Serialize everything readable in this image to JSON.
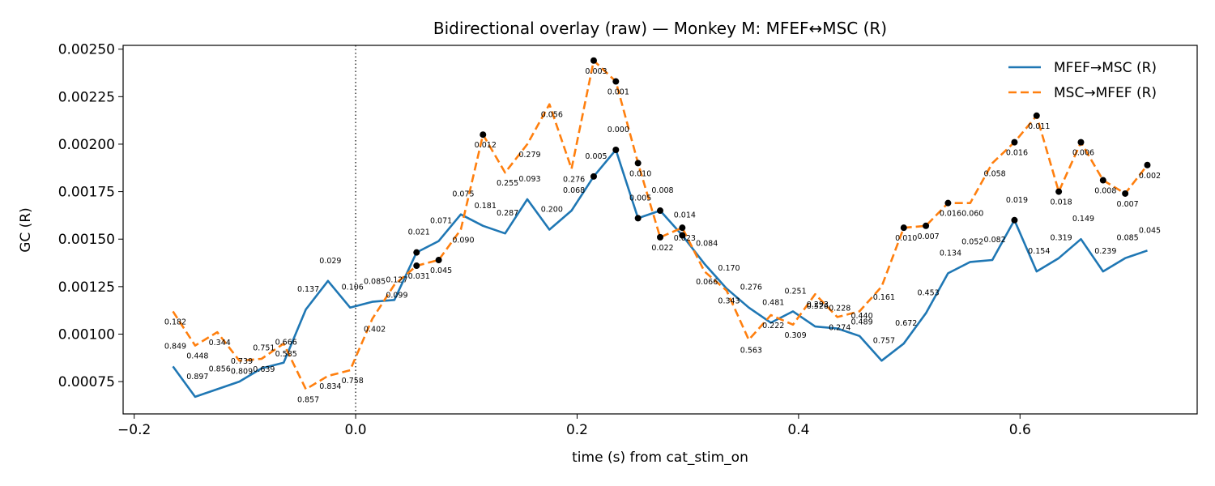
{
  "chart_data": {
    "type": "line",
    "title": "Bidirectional overlay (raw) — Monkey M: MFEF↔MSC (R)",
    "xlabel": "time (s) from cat_stim_on",
    "ylabel": "GC (R)",
    "xlim": [
      -0.21,
      0.76
    ],
    "ylim": [
      0.00058,
      0.00252
    ],
    "xticks": [
      -0.2,
      0.0,
      0.2,
      0.4,
      0.6
    ],
    "xtick_labels": [
      "−0.2",
      "0.0",
      "0.2",
      "0.4",
      "0.6"
    ],
    "yticks": [
      0.00075,
      0.001,
      0.00125,
      0.0015,
      0.00175,
      0.002,
      0.00225,
      0.0025
    ],
    "ytick_labels": [
      "0.00075",
      "0.00100",
      "0.00125",
      "0.00150",
      "0.00175",
      "0.00200",
      "0.00225",
      "0.00250"
    ],
    "vline_x": 0.0,
    "legend_position": "top-right",
    "x": [
      -0.165,
      -0.145,
      -0.125,
      -0.105,
      -0.085,
      -0.065,
      -0.045,
      -0.025,
      -0.005,
      0.015,
      0.035,
      0.055,
      0.075,
      0.095,
      0.115,
      0.135,
      0.155,
      0.175,
      0.195,
      0.215,
      0.235,
      0.255,
      0.275,
      0.295,
      0.315,
      0.335,
      0.355,
      0.375,
      0.395,
      0.415,
      0.435,
      0.455,
      0.475,
      0.495,
      0.515,
      0.535,
      0.555,
      0.575,
      0.595,
      0.615,
      0.635,
      0.655,
      0.675,
      0.695,
      0.715
    ],
    "series": [
      {
        "name": "MFEF→MSC (R)",
        "color": "#1f77b4",
        "dash": "solid",
        "values": [
          0.00083,
          0.00067,
          0.00071,
          0.00075,
          0.00082,
          0.00085,
          0.00113,
          0.00128,
          0.00114,
          0.00117,
          0.00118,
          0.00143,
          0.00149,
          0.00163,
          0.00157,
          0.00153,
          0.00171,
          0.00155,
          0.00165,
          0.00183,
          0.00197,
          0.00161,
          0.00165,
          0.00152,
          0.00137,
          0.00124,
          0.00114,
          0.00106,
          0.00112,
          0.00104,
          0.00103,
          0.00099,
          0.00086,
          0.00095,
          0.00111,
          0.00132,
          0.00138,
          0.00139,
          0.0016,
          0.00133,
          0.0014,
          0.0015,
          0.00133,
          0.0014,
          0.00144
        ],
        "p_values": [
          "0.849",
          "0.897",
          "0.856",
          "0.739",
          "0.751",
          "0.666",
          "0.137",
          "0.029",
          "0.106",
          "0.085",
          "0.127",
          "0.021",
          "0.071",
          "0.075",
          "0.181",
          "0.287",
          "0.093",
          "0.200",
          "0.068",
          "0.005",
          "0.000",
          "0.005",
          "0.008",
          "0.014",
          "0.084",
          "0.170",
          "0.276",
          "0.481",
          "0.251",
          "0.526",
          "0.228",
          "0.440",
          "0.757",
          "0.672",
          "0.453",
          "0.134",
          "0.052",
          "0.082",
          "0.019",
          "0.154",
          "0.319",
          "0.149",
          "0.239",
          "0.085",
          "0.045"
        ],
        "significant": [
          false,
          false,
          false,
          false,
          false,
          false,
          false,
          false,
          false,
          false,
          false,
          true,
          false,
          false,
          false,
          false,
          false,
          false,
          false,
          true,
          true,
          true,
          true,
          true,
          false,
          false,
          false,
          false,
          false,
          false,
          false,
          false,
          false,
          false,
          false,
          false,
          false,
          false,
          true,
          false,
          false,
          false,
          false,
          false,
          false
        ]
      },
      {
        "name": "MSC→MFEF (R)",
        "color": "#ff7f0e",
        "dash": "dashed",
        "values": [
          0.00112,
          0.00094,
          0.00101,
          0.00086,
          0.00087,
          0.00095,
          0.00071,
          0.00078,
          0.00081,
          0.00108,
          0.00126,
          0.00136,
          0.00139,
          0.00155,
          0.00205,
          0.00185,
          0.002,
          0.00221,
          0.00187,
          0.00244,
          0.00233,
          0.0019,
          0.00151,
          0.00156,
          0.00133,
          0.00123,
          0.00097,
          0.0011,
          0.00105,
          0.00121,
          0.00109,
          0.00112,
          0.00125,
          0.00156,
          0.00157,
          0.00169,
          0.00169,
          0.0019,
          0.00201,
          0.00215,
          0.00175,
          0.00201,
          0.00181,
          0.00174,
          0.00189
        ],
        "p_values": [
          "0.182",
          "0.448",
          "0.344",
          "0.809",
          "0.639",
          "0.585",
          "0.857",
          "0.834",
          "0.758",
          "0.402",
          "0.099",
          "0.031",
          "0.045",
          "0.090",
          "0.012",
          "0.255",
          "0.279",
          "0.056",
          "0.276",
          "0.003",
          "0.001",
          "0.010",
          "0.022",
          "0.023",
          "0.066",
          "0.343",
          "0.563",
          "0.222",
          "0.309",
          "0.293",
          "0.274",
          "0.489",
          "0.161",
          "0.010",
          "0.007",
          "0.016",
          "0.060",
          "0.058",
          "0.016",
          "0.011",
          "0.018",
          "0.006",
          "0.008",
          "0.007",
          "0.002"
        ],
        "significant": [
          false,
          false,
          false,
          false,
          false,
          false,
          false,
          false,
          false,
          false,
          false,
          true,
          true,
          false,
          true,
          false,
          false,
          false,
          false,
          true,
          true,
          true,
          true,
          true,
          false,
          false,
          false,
          false,
          false,
          false,
          false,
          false,
          false,
          true,
          true,
          true,
          false,
          false,
          true,
          true,
          true,
          true,
          true,
          true,
          true
        ]
      }
    ]
  }
}
